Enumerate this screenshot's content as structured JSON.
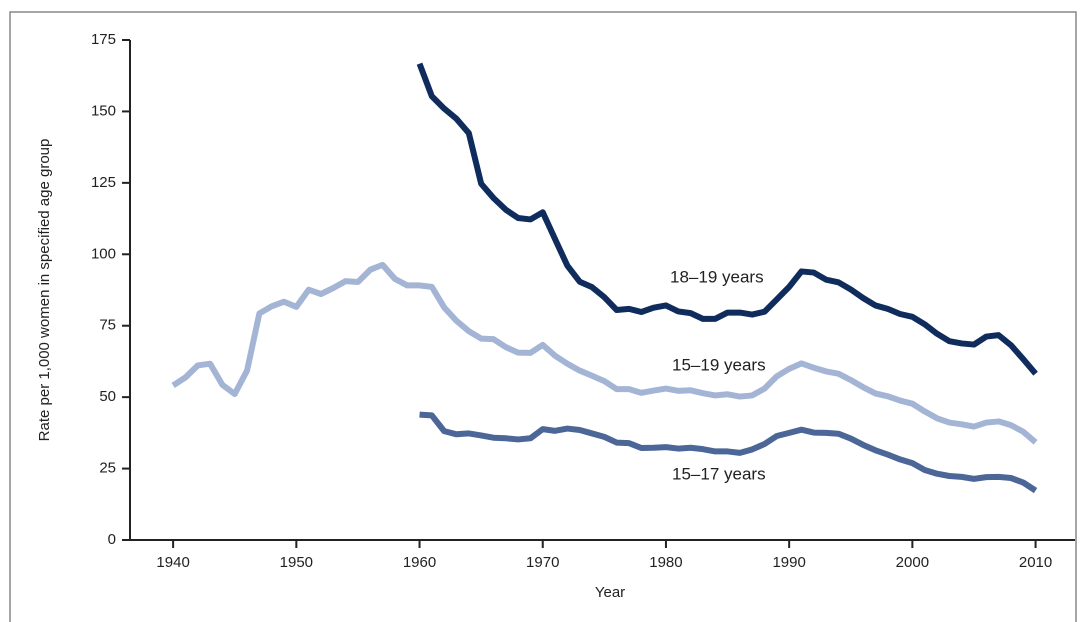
{
  "chart_data": {
    "type": "line",
    "x_label": "Year",
    "y_label": "Rate per 1,000 women in specified age group",
    "x": [
      1940,
      1941,
      1942,
      1943,
      1944,
      1945,
      1946,
      1947,
      1948,
      1949,
      1950,
      1951,
      1952,
      1953,
      1954,
      1955,
      1956,
      1957,
      1958,
      1959,
      1960,
      1961,
      1962,
      1963,
      1964,
      1965,
      1966,
      1967,
      1968,
      1969,
      1970,
      1971,
      1972,
      1973,
      1974,
      1975,
      1976,
      1977,
      1978,
      1979,
      1980,
      1981,
      1982,
      1983,
      1984,
      1985,
      1986,
      1987,
      1988,
      1989,
      1990,
      1991,
      1992,
      1993,
      1994,
      1995,
      1996,
      1997,
      1998,
      1999,
      2000,
      2001,
      2002,
      2003,
      2004,
      2005,
      2006,
      2007,
      2008,
      2009,
      2010
    ],
    "series": [
      {
        "name": "18–19 years",
        "color": "#0f2c5c",
        "values": [
          null,
          null,
          null,
          null,
          null,
          null,
          null,
          null,
          null,
          null,
          null,
          null,
          null,
          null,
          null,
          null,
          null,
          null,
          null,
          null,
          166.7,
          155.3,
          151.0,
          147.4,
          142.4,
          124.7,
          119.7,
          115.6,
          112.7,
          112.2,
          114.7,
          105.3,
          96.0,
          90.4,
          88.5,
          85.0,
          80.5,
          80.9,
          79.8,
          81.3,
          82.1,
          80.0,
          79.4,
          77.4,
          77.4,
          79.6,
          79.6,
          78.9,
          79.9,
          84.2,
          88.6,
          94.0,
          93.6,
          91.1,
          90.2,
          87.7,
          84.7,
          82.1,
          80.9,
          79.1,
          78.1,
          75.5,
          72.2,
          69.6,
          68.8,
          68.4,
          71.2,
          71.7,
          68.2,
          63.3,
          58.2
        ]
      },
      {
        "name": "15–19 years",
        "color": "#a4b4d5",
        "values": [
          54.1,
          56.9,
          61.1,
          61.7,
          54.3,
          51.1,
          59.3,
          79.3,
          81.8,
          83.4,
          81.6,
          87.6,
          86.1,
          88.2,
          90.6,
          90.3,
          94.6,
          96.3,
          91.4,
          89.1,
          89.1,
          88.6,
          81.4,
          76.7,
          73.1,
          70.5,
          70.3,
          67.5,
          65.6,
          65.5,
          68.3,
          64.5,
          61.7,
          59.3,
          57.5,
          55.6,
          52.8,
          52.8,
          51.5,
          52.3,
          53.0,
          52.2,
          52.4,
          51.4,
          50.6,
          51.0,
          50.2,
          50.6,
          53.0,
          57.3,
          59.9,
          61.8,
          60.3,
          59.0,
          58.2,
          56.0,
          53.5,
          51.3,
          50.3,
          48.8,
          47.7,
          45.0,
          42.6,
          41.1,
          40.5,
          39.7,
          41.1,
          41.5,
          40.2,
          37.9,
          34.2
        ]
      },
      {
        "name": "15–17 years",
        "color": "#4b6697",
        "values": [
          null,
          null,
          null,
          null,
          null,
          null,
          null,
          null,
          null,
          null,
          null,
          null,
          null,
          null,
          null,
          null,
          null,
          null,
          null,
          null,
          43.9,
          43.6,
          38.1,
          37.0,
          37.3,
          36.6,
          35.8,
          35.6,
          35.2,
          35.6,
          38.8,
          38.2,
          39.0,
          38.5,
          37.3,
          36.1,
          34.1,
          33.9,
          32.2,
          32.3,
          32.5,
          32.0,
          32.3,
          31.8,
          31.0,
          31.0,
          30.5,
          31.7,
          33.6,
          36.4,
          37.5,
          38.6,
          37.6,
          37.5,
          37.2,
          35.5,
          33.3,
          31.4,
          29.9,
          28.2,
          26.9,
          24.5,
          23.2,
          22.4,
          22.1,
          21.4,
          22.0,
          22.1,
          21.7,
          20.1,
          17.3
        ]
      }
    ],
    "xlim": [
      1936.5,
      2013.2
    ],
    "xticks": [
      1940,
      1950,
      1960,
      1970,
      1980,
      1990,
      2000,
      2010
    ],
    "ylim": [
      0,
      175
    ],
    "yticks": [
      0,
      25,
      50,
      75,
      100,
      125,
      150,
      175
    ]
  }
}
